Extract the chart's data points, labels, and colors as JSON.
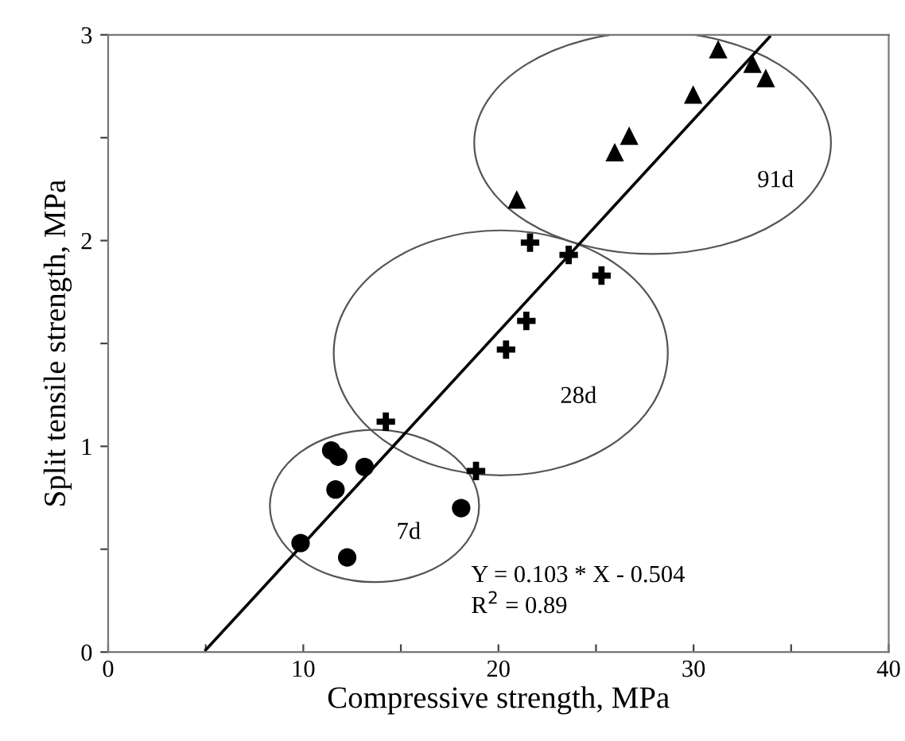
{
  "chart_data": {
    "type": "scatter",
    "xlabel": "Compressive strength, MPa",
    "ylabel": "Split tensile strength, MPa",
    "xlim": [
      0,
      40
    ],
    "ylim": [
      0,
      3
    ],
    "xticks": [
      0,
      {
        "value": 5,
        "label": null
      },
      10,
      {
        "value": 15,
        "label": null
      },
      20,
      {
        "value": 25,
        "label": null
      },
      30,
      {
        "value": 35,
        "label": null
      },
      40
    ],
    "yticks": [
      0,
      {
        "value": 0.5,
        "label": null
      },
      1,
      {
        "value": 1.5,
        "label": null
      },
      2,
      {
        "value": 2.5,
        "label": null
      },
      3
    ],
    "grid": false,
    "legend": false,
    "series": [
      {
        "marker": "circle",
        "color": "#000000",
        "x": [
          9.86,
          11.43,
          11.79,
          13.14,
          11.65,
          12.25,
          18.09
        ],
        "values": [
          0.53,
          0.98,
          0.95,
          0.9,
          0.79,
          0.46,
          0.7
        ]
      },
      {
        "marker": "cross",
        "color": "#000000",
        "x": [
          14.23,
          18.85,
          20.39,
          21.43,
          21.62,
          23.6,
          25.28
        ],
        "values": [
          1.12,
          0.88,
          1.47,
          1.61,
          1.99,
          1.93,
          1.83
        ]
      },
      {
        "marker": "triangle",
        "color": "#000000",
        "x": [
          20.94,
          25.96,
          26.7,
          29.98,
          31.26,
          33.02,
          33.7
        ],
        "values": [
          2.2,
          2.43,
          2.51,
          2.71,
          2.93,
          2.86,
          2.79
        ]
      },
      {
        "type": "line",
        "marker": "none",
        "line_style": "solid",
        "color": "#000000",
        "x": [
          5,
          33.9
        ],
        "values": [
          0.01,
          2.99
        ]
      }
    ],
    "annotations": [
      "7d",
      "28d",
      "91d",
      "Y = 0.103 * X - 0.504",
      "R$^{2}$ = 0.89"
    ]
  }
}
